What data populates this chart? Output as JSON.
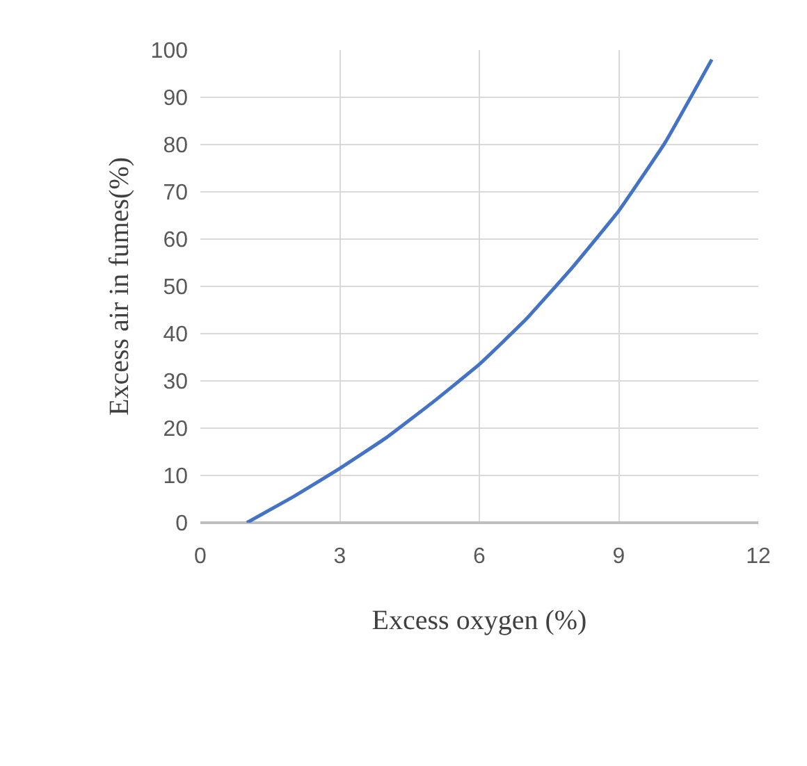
{
  "chart_data": {
    "type": "line",
    "xlabel": "Excess oxygen (%)",
    "ylabel": "Excess air in fumes(%)",
    "x": [
      1,
      2,
      3,
      4,
      5,
      6,
      7,
      8,
      9,
      10,
      11
    ],
    "series": [
      {
        "color": "#4472c4",
        "values": [
          0,
          5.5,
          11.5,
          18,
          25.5,
          33.5,
          43,
          54,
          66,
          80.5,
          98
        ]
      }
    ],
    "xlim": [
      0,
      12
    ],
    "xticks": [
      0,
      3,
      6,
      9,
      12
    ],
    "ylim": [
      0,
      100
    ],
    "yticks": [
      0,
      10,
      20,
      30,
      40,
      50,
      60,
      70,
      80,
      90,
      100
    ],
    "grid": true,
    "marker": "none",
    "line_style": "solid"
  }
}
